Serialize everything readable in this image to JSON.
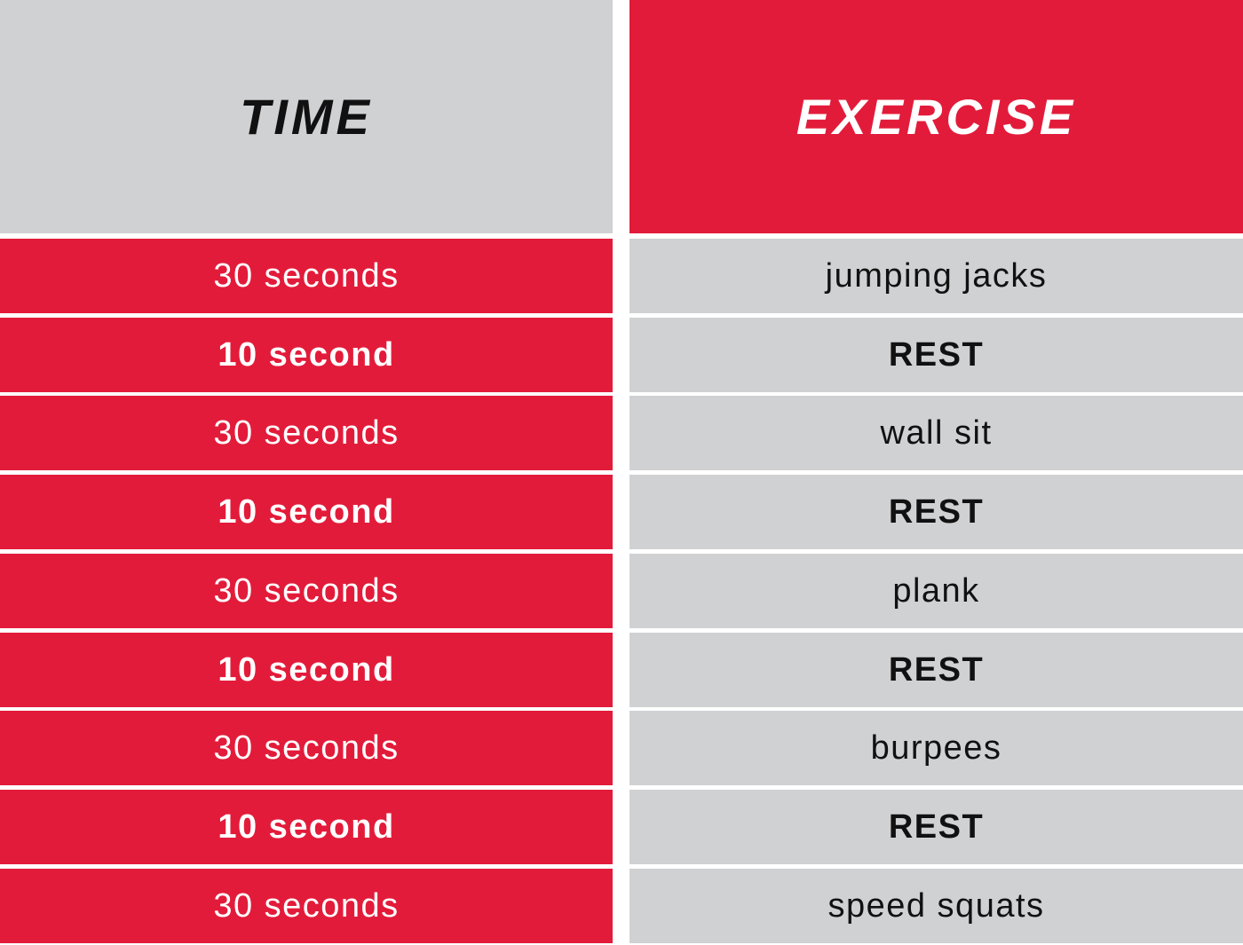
{
  "header": {
    "time_label": "TIME",
    "exercise_label": "EXERCISE"
  },
  "colors": {
    "red": "#e31b3a",
    "gray": "#d0d1d3",
    "dark_text": "#111111",
    "light_text": "#ffffff"
  },
  "rows": [
    {
      "time": "30 seconds",
      "exercise": "jumping jacks",
      "is_rest": false
    },
    {
      "time": "10 second",
      "exercise": "REST",
      "is_rest": true
    },
    {
      "time": "30 seconds",
      "exercise": "wall sit",
      "is_rest": false
    },
    {
      "time": "10 second",
      "exercise": "REST",
      "is_rest": true
    },
    {
      "time": "30 seconds",
      "exercise": "plank",
      "is_rest": false
    },
    {
      "time": "10 second",
      "exercise": "REST",
      "is_rest": true
    },
    {
      "time": "30 seconds",
      "exercise": "burpees",
      "is_rest": false
    },
    {
      "time": "10 second",
      "exercise": "REST",
      "is_rest": true
    },
    {
      "time": "30 seconds",
      "exercise": "speed squats",
      "is_rest": false
    }
  ]
}
